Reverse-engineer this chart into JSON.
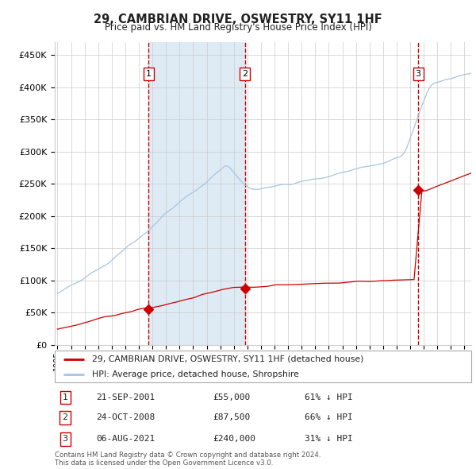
{
  "title": "29, CAMBRIAN DRIVE, OSWESTRY, SY11 1HF",
  "subtitle": "Price paid vs. HM Land Registry's House Price Index (HPI)",
  "ylabel_ticks": [
    "£0",
    "£50K",
    "£100K",
    "£150K",
    "£200K",
    "£250K",
    "£300K",
    "£350K",
    "£400K",
    "£450K"
  ],
  "ytick_values": [
    0,
    50000,
    100000,
    150000,
    200000,
    250000,
    300000,
    350000,
    400000,
    450000
  ],
  "xlim": [
    1994.8,
    2025.5
  ],
  "ylim": [
    0,
    470000
  ],
  "transactions": [
    {
      "label": "1",
      "date_num": 2001.72,
      "price": 55000,
      "date_str": "21-SEP-2001",
      "pct": "61%",
      "dir": "↓"
    },
    {
      "label": "2",
      "date_num": 2008.81,
      "price": 87500,
      "date_str": "24-OCT-2008",
      "pct": "66%",
      "dir": "↓"
    },
    {
      "label": "3",
      "date_num": 2021.59,
      "price": 240000,
      "date_str": "06-AUG-2021",
      "pct": "31%",
      "dir": "↓"
    }
  ],
  "hpi_line_color": "#a8c4e0",
  "price_line_color": "#cc0000",
  "shade_color": "#deeaf4",
  "grid_color": "#cccccc",
  "legend_label_price": "29, CAMBRIAN DRIVE, OSWESTRY, SY11 1HF (detached house)",
  "legend_label_hpi": "HPI: Average price, detached house, Shropshire",
  "footer": "Contains HM Land Registry data © Crown copyright and database right 2024.\nThis data is licensed under the Open Government Licence v3.0."
}
